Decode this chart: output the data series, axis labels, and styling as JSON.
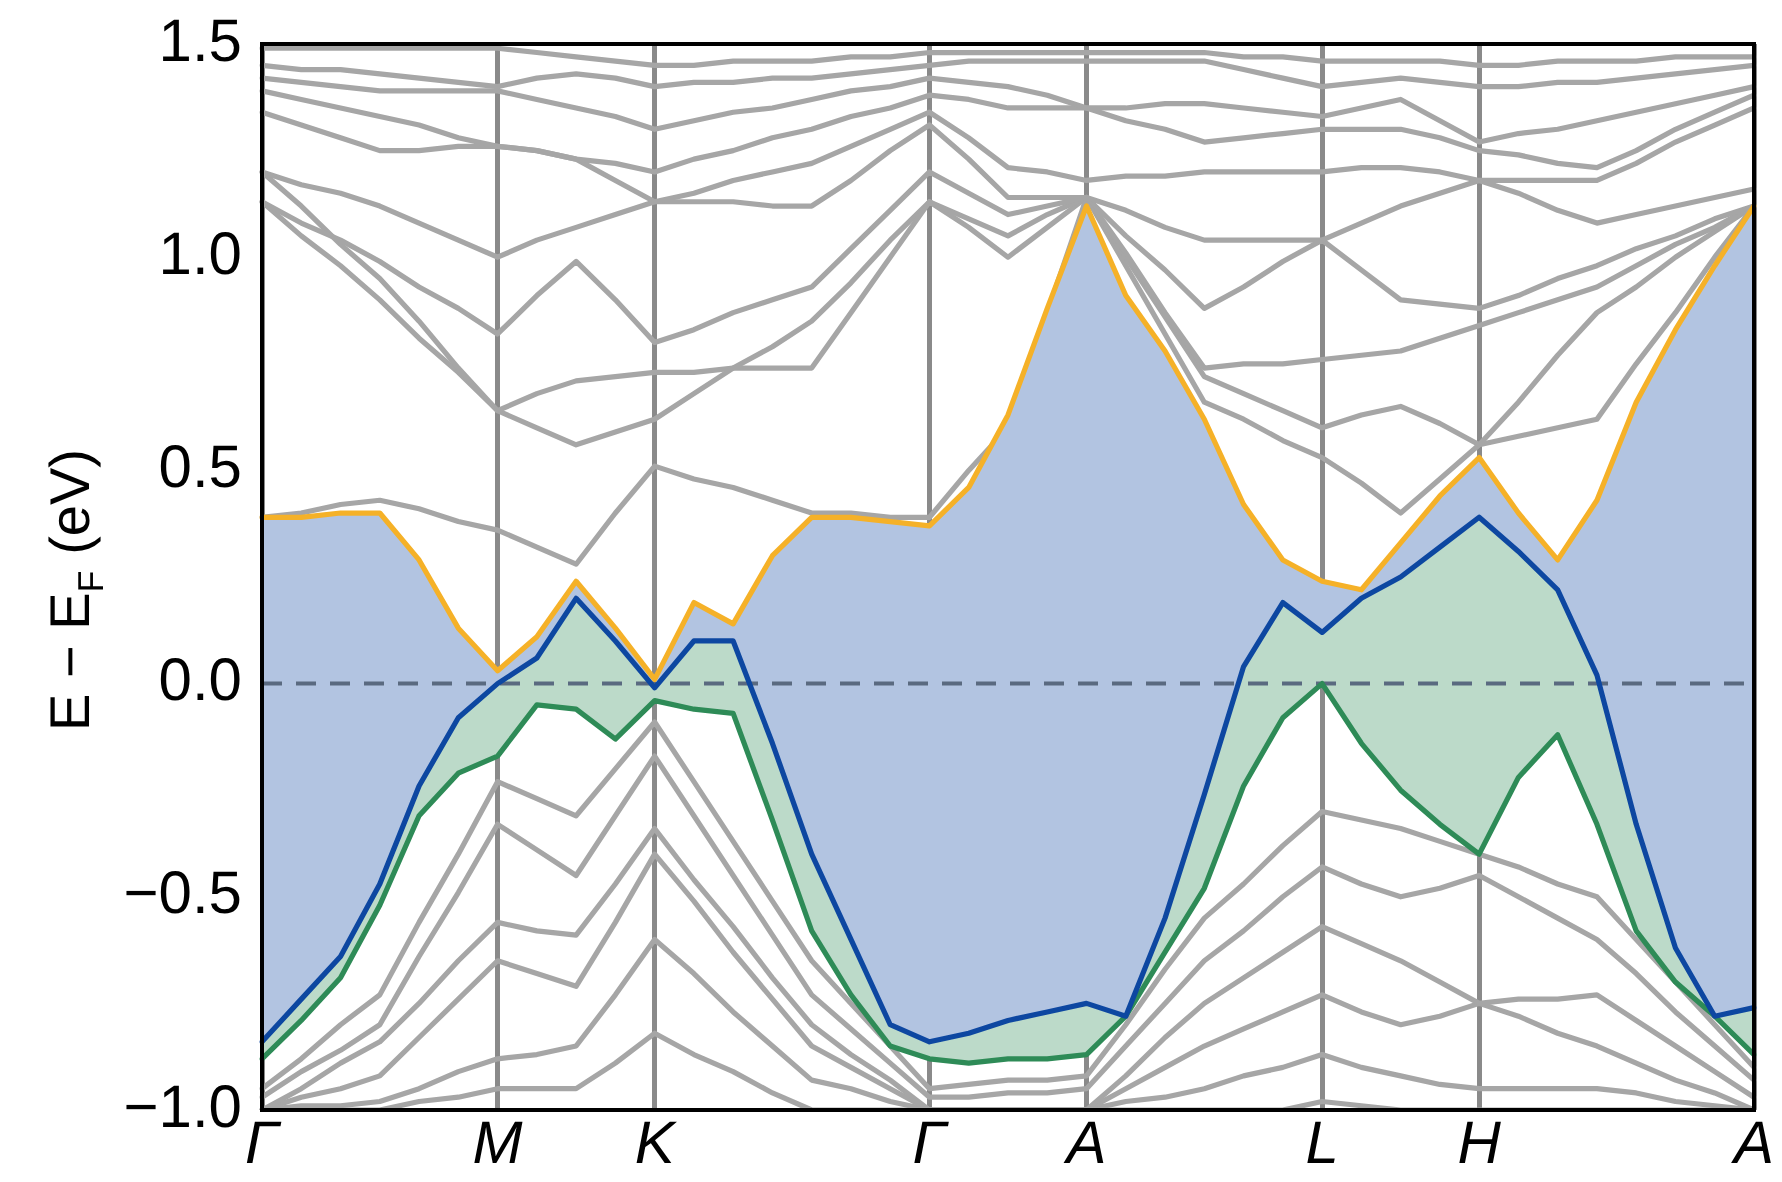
{
  "chart_data": {
    "type": "line",
    "ylabel": "E − E$_{F}$ (eV)",
    "categories": [
      "Γ",
      null,
      null,
      null,
      null,
      null,
      "M",
      null,
      null,
      null,
      "K",
      null,
      null,
      null,
      null,
      null,
      null,
      "Γ",
      null,
      null,
      null,
      "A",
      null,
      null,
      null,
      null,
      null,
      "L",
      null,
      null,
      null,
      "H",
      null,
      null,
      null,
      null,
      null,
      null,
      "A"
    ],
    "ylim": [
      -1.0,
      1.5
    ],
    "yticks": [
      {
        "value": -1.0,
        "label": "−1.0"
      },
      {
        "value": -0.5,
        "label": "−0.5"
      },
      {
        "value": 0.0,
        "label": "0.0"
      },
      {
        "value": 0.5,
        "label": "0.5"
      },
      {
        "value": 1.0,
        "label": "1.0"
      },
      {
        "value": 1.5,
        "label": "1.5"
      }
    ],
    "grid": "x",
    "legend": false,
    "marker": "none",
    "line_style": "solid",
    "ref_lines": [
      {
        "axis": "y",
        "value": 0,
        "label": null,
        "color": "#5a6a80",
        "line_style": "dashed"
      }
    ],
    "series": [
      {
        "color": "#f5b128",
        "values": [
          0.39,
          0.39,
          0.4,
          0.4,
          0.29,
          0.13,
          0.03,
          0.11,
          0.24,
          0.13,
          0.01,
          0.19,
          0.14,
          0.3,
          0.39,
          0.39,
          0.38,
          0.37,
          0.46,
          0.63,
          0.88,
          1.12,
          0.91,
          0.78,
          0.62,
          0.42,
          0.29,
          0.24,
          0.22,
          0.33,
          0.44,
          0.53,
          0.4,
          0.29,
          0.43,
          0.66,
          0.83,
          0.98,
          1.12
        ]
      },
      {
        "color": "#0d47a1",
        "values": [
          -0.84,
          -0.74,
          -0.64,
          -0.47,
          -0.24,
          -0.08,
          0.0,
          0.06,
          0.2,
          0.1,
          -0.01,
          0.1,
          0.1,
          -0.14,
          -0.4,
          -0.6,
          -0.8,
          -0.84,
          -0.82,
          -0.79,
          -0.77,
          -0.75,
          -0.78,
          -0.55,
          -0.26,
          0.04,
          0.19,
          0.12,
          0.2,
          0.25,
          0.32,
          0.39,
          0.31,
          0.22,
          0.02,
          -0.33,
          -0.62,
          -0.78,
          -0.76
        ],
        "lower": [
          -0.84,
          -0.74,
          -0.64,
          -0.47,
          -0.24,
          -0.08,
          0.0,
          0.06,
          0.2,
          0.1,
          -0.01,
          0.1,
          0.1,
          -0.14,
          -0.4,
          -0.6,
          -0.8,
          -0.84,
          -0.82,
          -0.79,
          -0.77,
          -0.75,
          -0.78,
          -0.55,
          -0.26,
          0.04,
          0.19,
          0.12,
          0.2,
          0.25,
          0.32,
          0.39,
          0.31,
          0.22,
          0.02,
          -0.33,
          -0.62,
          -0.78,
          -0.76
        ],
        "upper": [
          0.39,
          0.39,
          0.4,
          0.4,
          0.29,
          0.13,
          0.03,
          0.11,
          0.24,
          0.13,
          0.01,
          0.19,
          0.14,
          0.3,
          0.39,
          0.39,
          0.38,
          0.37,
          0.46,
          0.63,
          0.88,
          1.12,
          0.91,
          0.78,
          0.62,
          0.42,
          0.29,
          0.24,
          0.22,
          0.33,
          0.44,
          0.53,
          0.4,
          0.29,
          0.43,
          0.66,
          0.83,
          0.98,
          1.12
        ]
      },
      {
        "color": "#2e8b57",
        "values": [
          -0.88,
          -0.79,
          -0.69,
          -0.52,
          -0.31,
          -0.21,
          -0.17,
          -0.05,
          -0.06,
          -0.13,
          -0.04,
          -0.06,
          -0.07,
          -0.32,
          -0.58,
          -0.73,
          -0.85,
          -0.88,
          -0.89,
          -0.88,
          -0.88,
          -0.87,
          -0.78,
          -0.63,
          -0.48,
          -0.24,
          -0.08,
          0.0,
          -0.14,
          -0.25,
          -0.33,
          -0.4,
          -0.22,
          -0.12,
          -0.33,
          -0.58,
          -0.7,
          -0.78,
          -0.87
        ],
        "lower": [
          -0.88,
          -0.79,
          -0.69,
          -0.52,
          -0.31,
          -0.21,
          -0.17,
          -0.05,
          -0.06,
          -0.13,
          -0.04,
          -0.06,
          -0.07,
          -0.32,
          -0.58,
          -0.73,
          -0.85,
          -0.88,
          -0.89,
          -0.88,
          -0.88,
          -0.87,
          -0.78,
          -0.63,
          -0.48,
          -0.24,
          -0.08,
          0.0,
          -0.14,
          -0.25,
          -0.33,
          -0.4,
          -0.22,
          -0.12,
          -0.33,
          -0.58,
          -0.7,
          -0.78,
          -0.87
        ],
        "upper": [
          -0.84,
          -0.74,
          -0.64,
          -0.47,
          -0.24,
          -0.08,
          0.0,
          0.06,
          0.2,
          0.1,
          -0.01,
          0.1,
          0.1,
          -0.14,
          -0.4,
          -0.6,
          -0.8,
          -0.84,
          -0.82,
          -0.79,
          -0.77,
          -0.75,
          -0.78,
          -0.55,
          -0.26,
          0.04,
          0.19,
          0.12,
          0.2,
          0.25,
          0.32,
          0.39,
          0.31,
          0.22,
          0.02,
          -0.33,
          -0.62,
          -0.78,
          -0.76
        ]
      },
      {
        "color": "#a6a6a6",
        "values": [
          1.49,
          1.49,
          1.49,
          1.49,
          1.49,
          1.49,
          1.49,
          1.48,
          1.47,
          1.46,
          1.45,
          1.45,
          1.46,
          1.46,
          1.46,
          1.47,
          1.47,
          1.48,
          1.48,
          1.48,
          1.48,
          1.48,
          1.48,
          1.48,
          1.48,
          1.47,
          1.47,
          1.46,
          1.46,
          1.46,
          1.46,
          1.45,
          1.45,
          1.46,
          1.46,
          1.46,
          1.47,
          1.47,
          1.47
        ]
      },
      {
        "color": "#a6a6a6",
        "values": [
          1.45,
          1.44,
          1.44,
          1.43,
          1.42,
          1.41,
          1.4,
          1.42,
          1.43,
          1.42,
          1.4,
          1.41,
          1.41,
          1.42,
          1.42,
          1.43,
          1.44,
          1.45,
          1.46,
          1.46,
          1.46,
          1.46,
          1.46,
          1.46,
          1.46,
          1.44,
          1.42,
          1.4,
          1.41,
          1.42,
          1.41,
          1.4,
          1.4,
          1.41,
          1.41,
          1.42,
          1.43,
          1.44,
          1.45
        ]
      },
      {
        "color": "#a6a6a6",
        "values": [
          1.42,
          1.41,
          1.4,
          1.39,
          1.39,
          1.39,
          1.39,
          1.37,
          1.35,
          1.33,
          1.3,
          1.32,
          1.34,
          1.35,
          1.37,
          1.39,
          1.4,
          1.42,
          1.41,
          1.4,
          1.38,
          1.35,
          1.35,
          1.36,
          1.36,
          1.35,
          1.34,
          1.33,
          1.35,
          1.37,
          1.32,
          1.27,
          1.29,
          1.3,
          1.32,
          1.34,
          1.36,
          1.38,
          1.4
        ]
      },
      {
        "color": "#a6a6a6",
        "values": [
          1.39,
          1.37,
          1.35,
          1.33,
          1.31,
          1.28,
          1.26,
          1.25,
          1.23,
          1.22,
          1.2,
          1.23,
          1.25,
          1.28,
          1.3,
          1.33,
          1.35,
          1.38,
          1.37,
          1.35,
          1.35,
          1.35,
          1.32,
          1.3,
          1.27,
          1.28,
          1.29,
          1.3,
          1.3,
          1.3,
          1.28,
          1.25,
          1.24,
          1.22,
          1.21,
          1.25,
          1.3,
          1.34,
          1.38
        ]
      },
      {
        "color": "#a6a6a6",
        "values": [
          1.34,
          1.31,
          1.28,
          1.25,
          1.25,
          1.26,
          1.26,
          1.25,
          1.23,
          1.18,
          1.13,
          1.15,
          1.18,
          1.2,
          1.22,
          1.26,
          1.3,
          1.34,
          1.28,
          1.21,
          1.2,
          1.18,
          1.19,
          1.19,
          1.2,
          1.2,
          1.2,
          1.2,
          1.21,
          1.21,
          1.2,
          1.18,
          1.18,
          1.18,
          1.18,
          1.22,
          1.27,
          1.31,
          1.35
        ]
      },
      {
        "color": "#a6a6a6",
        "values": [
          1.2,
          1.17,
          1.15,
          1.12,
          1.08,
          1.04,
          1.0,
          1.04,
          1.07,
          1.1,
          1.13,
          1.13,
          1.13,
          1.12,
          1.12,
          1.18,
          1.25,
          1.31,
          1.23,
          1.14,
          1.14,
          1.14,
          1.11,
          1.07,
          1.04,
          1.04,
          1.04,
          1.04,
          1.08,
          1.12,
          1.15,
          1.18,
          1.15,
          1.11,
          1.08,
          1.1,
          1.12,
          1.14,
          1.16
        ]
      },
      {
        "color": "#a6a6a6",
        "values": [
          1.13,
          1.08,
          1.04,
          0.99,
          0.93,
          0.88,
          0.82,
          0.91,
          0.99,
          0.9,
          0.8,
          0.83,
          0.87,
          0.9,
          0.93,
          1.02,
          1.11,
          1.2,
          1.15,
          1.1,
          1.12,
          1.14,
          1.05,
          0.97,
          0.88,
          0.93,
          0.99,
          1.04,
          0.97,
          0.9,
          0.89,
          0.88,
          0.91,
          0.95,
          0.98,
          1.02,
          1.05,
          1.09,
          1.12
        ]
      },
      {
        "color": "#a6a6a6",
        "values": [
          1.2,
          1.12,
          1.03,
          0.95,
          0.85,
          0.74,
          0.64,
          0.68,
          0.71,
          0.72,
          0.73,
          0.73,
          0.74,
          0.74,
          0.74,
          0.87,
          1.0,
          1.13,
          1.09,
          1.05,
          1.1,
          1.14,
          1.01,
          0.87,
          0.74,
          0.75,
          0.75,
          0.76,
          0.77,
          0.78,
          0.81,
          0.84,
          0.87,
          0.9,
          0.93,
          0.98,
          1.03,
          1.07,
          1.12
        ]
      },
      {
        "color": "#a6a6a6",
        "values": [
          1.13,
          1.05,
          0.98,
          0.9,
          0.81,
          0.73,
          0.64,
          0.6,
          0.56,
          0.59,
          0.62,
          0.68,
          0.74,
          0.79,
          0.85,
          0.94,
          1.04,
          1.13,
          1.07,
          1.0,
          1.07,
          1.14,
          1.0,
          0.86,
          0.72,
          0.68,
          0.64,
          0.6,
          0.63,
          0.65,
          0.61,
          0.56,
          0.66,
          0.77,
          0.87,
          0.93,
          1.0,
          1.06,
          1.12
        ]
      },
      {
        "color": "#a6a6a6",
        "values": [
          0.39,
          0.4,
          0.42,
          0.43,
          0.41,
          0.38,
          0.36,
          0.32,
          0.28,
          0.4,
          0.51,
          0.48,
          0.46,
          0.43,
          0.4,
          0.4,
          0.39,
          0.39,
          0.5,
          0.6,
          0.87,
          1.14,
          0.98,
          0.82,
          0.66,
          0.62,
          0.57,
          0.53,
          0.47,
          0.4,
          0.48,
          0.56,
          0.58,
          0.6,
          0.62,
          0.75,
          0.87,
          1.0,
          1.12
        ]
      },
      {
        "color": "#a6a6a6",
        "values": [
          -0.95,
          -0.88,
          -0.8,
          -0.73,
          -0.56,
          -0.4,
          -0.23,
          -0.27,
          -0.31,
          -0.2,
          -0.09,
          -0.23,
          -0.37,
          -0.51,
          -0.65,
          -0.75,
          -0.85,
          -0.95,
          -0.94,
          -0.93,
          -0.93,
          -0.92,
          -0.8,
          -0.67,
          -0.55,
          -0.47,
          -0.38,
          -0.3,
          -0.32,
          -0.34,
          -0.37,
          -0.4,
          -0.43,
          -0.47,
          -0.5,
          -0.6,
          -0.7,
          -0.8,
          -0.9
        ]
      },
      {
        "color": "#a6a6a6",
        "values": [
          -0.97,
          -0.91,
          -0.86,
          -0.8,
          -0.64,
          -0.49,
          -0.33,
          -0.39,
          -0.45,
          -0.31,
          -0.17,
          -0.31,
          -0.45,
          -0.59,
          -0.73,
          -0.81,
          -0.89,
          -0.97,
          -0.97,
          -0.96,
          -0.96,
          -0.95,
          -0.85,
          -0.75,
          -0.65,
          -0.58,
          -0.5,
          -0.43,
          -0.47,
          -0.5,
          -0.48,
          -0.45,
          -0.5,
          -0.55,
          -0.6,
          -0.68,
          -0.77,
          -0.85,
          -0.93
        ]
      },
      {
        "color": "#a6a6a6",
        "values": [
          -1.0,
          -0.95,
          -0.89,
          -0.84,
          -0.75,
          -0.65,
          -0.56,
          -0.58,
          -0.59,
          -0.47,
          -0.34,
          -0.46,
          -0.57,
          -0.69,
          -0.8,
          -0.87,
          -0.93,
          -1.0,
          -1.0,
          -1.0,
          -1.0,
          -1.0,
          -0.92,
          -0.83,
          -0.75,
          -0.69,
          -0.63,
          -0.57,
          -0.61,
          -0.65,
          -0.7,
          -0.75,
          -0.74,
          -0.74,
          -0.73,
          -0.79,
          -0.85,
          -0.91,
          -0.97
        ]
      },
      {
        "color": "#a6a6a6",
        "values": [
          -1.0,
          -0.97,
          -0.95,
          -0.92,
          -0.83,
          -0.74,
          -0.65,
          -0.68,
          -0.71,
          -0.56,
          -0.4,
          -0.51,
          -0.63,
          -0.74,
          -0.85,
          -0.9,
          -0.95,
          -1.0,
          -1.0,
          -1.0,
          -1.0,
          -1.0,
          -0.95,
          -0.9,
          -0.85,
          -0.81,
          -0.77,
          -0.73,
          -0.77,
          -0.8,
          -0.78,
          -0.75,
          -0.78,
          -0.82,
          -0.85,
          -0.89,
          -0.93,
          -0.96,
          -1.0
        ]
      },
      {
        "color": "#a6a6a6",
        "values": [
          -1.0,
          -0.99,
          -0.99,
          -0.98,
          -0.95,
          -0.91,
          -0.88,
          -0.87,
          -0.85,
          -0.73,
          -0.6,
          -0.68,
          -0.77,
          -0.85,
          -0.93,
          -0.95,
          -0.98,
          -1.0,
          -1.0,
          -1.0,
          -1.0,
          -1.0,
          -0.98,
          -0.97,
          -0.95,
          -0.92,
          -0.9,
          -0.87,
          -0.9,
          -0.92,
          -0.94,
          -0.95,
          -0.95,
          -0.95,
          -0.95,
          -0.96,
          -0.98,
          -0.99,
          -1.0
        ]
      },
      {
        "color": "#a6a6a6",
        "values": [
          -1.0,
          -1.0,
          -1.0,
          -1.0,
          -0.98,
          -0.97,
          -0.95,
          -0.95,
          -0.95,
          -0.89,
          -0.82,
          -0.87,
          -0.91,
          -0.96,
          -1.0,
          -1.0,
          -1.0,
          -1.0,
          -1.0,
          -1.0,
          -1.0,
          -1.0,
          -1.0,
          -1.0,
          -1.0,
          -1.0,
          -1.0,
          -0.98,
          -0.99,
          -1.0,
          -1.0,
          -1.0,
          -1.0,
          -1.0,
          -1.0,
          -1.0,
          -1.0,
          -1.0,
          -1.0
        ]
      }
    ]
  }
}
